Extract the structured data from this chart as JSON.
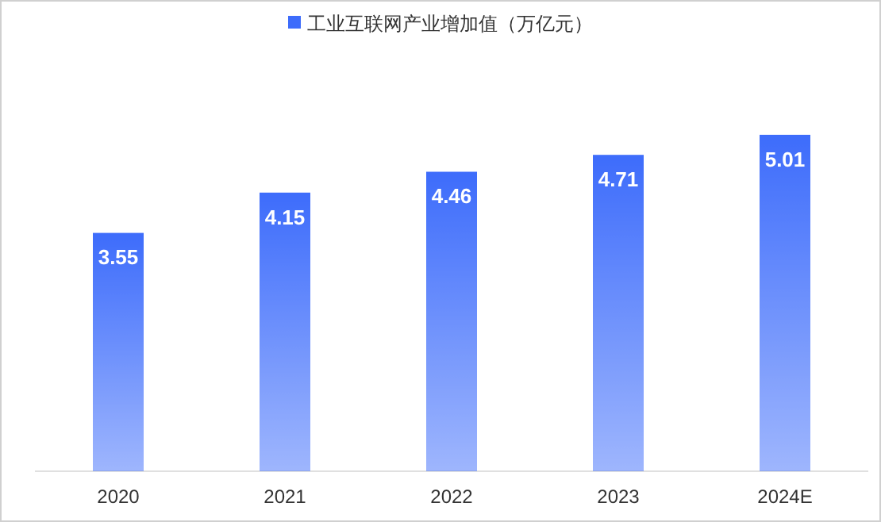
{
  "chart_data": {
    "type": "bar",
    "legend": "top",
    "data_labels": true,
    "categories": [
      "2020",
      "2021",
      "2022",
      "2023",
      "2024E"
    ],
    "series": [
      {
        "name": "工业互联网产业增加值（万亿元）",
        "color": "#3d6cfb",
        "values": [
          3.55,
          4.15,
          4.46,
          4.71,
          5.01
        ]
      }
    ]
  }
}
